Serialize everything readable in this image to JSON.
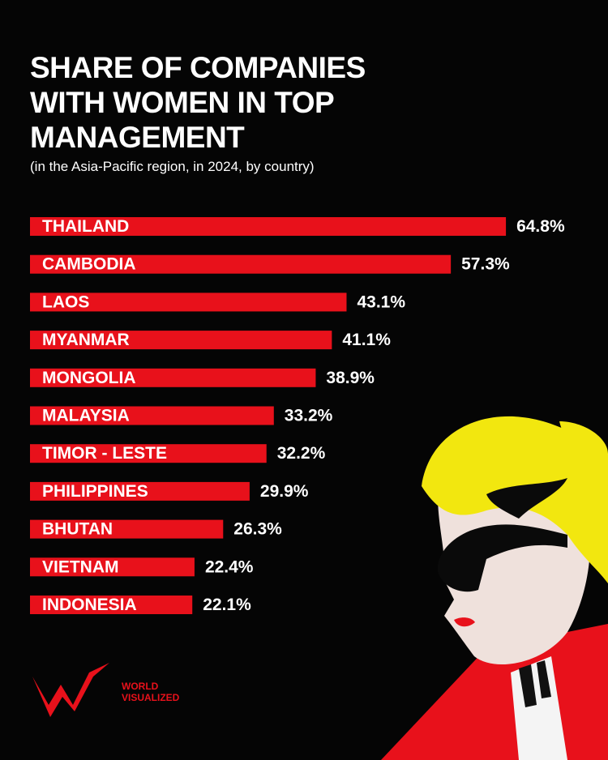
{
  "chart_data": {
    "type": "bar",
    "orientation": "horizontal",
    "title": "SHARE OF COMPANIES WITH WOMEN IN TOP MANAGEMENT",
    "subtitle": "(in the Asia-Pacific region, in 2024, by country)",
    "categories": [
      "THAILAND",
      "CAMBODIA",
      "LAOS",
      "MYANMAR",
      "MONGOLIA",
      "MALAYSIA",
      "TIMOR - LESTE",
      "PHILIPPINES",
      "BHUTAN",
      "VIETNAM",
      "INDONESIA"
    ],
    "values": [
      64.8,
      57.3,
      43.1,
      41.1,
      38.9,
      33.2,
      32.2,
      29.9,
      26.3,
      22.4,
      22.1
    ],
    "value_labels": [
      "64.8%",
      "57.3%",
      "43.1%",
      "41.1%",
      "38.9%",
      "33.2%",
      "32.2%",
      "29.9%",
      "26.3%",
      "22.4%",
      "22.1%"
    ],
    "color": "#e8111b"
  },
  "brand": "WORLD VISUALIZED"
}
